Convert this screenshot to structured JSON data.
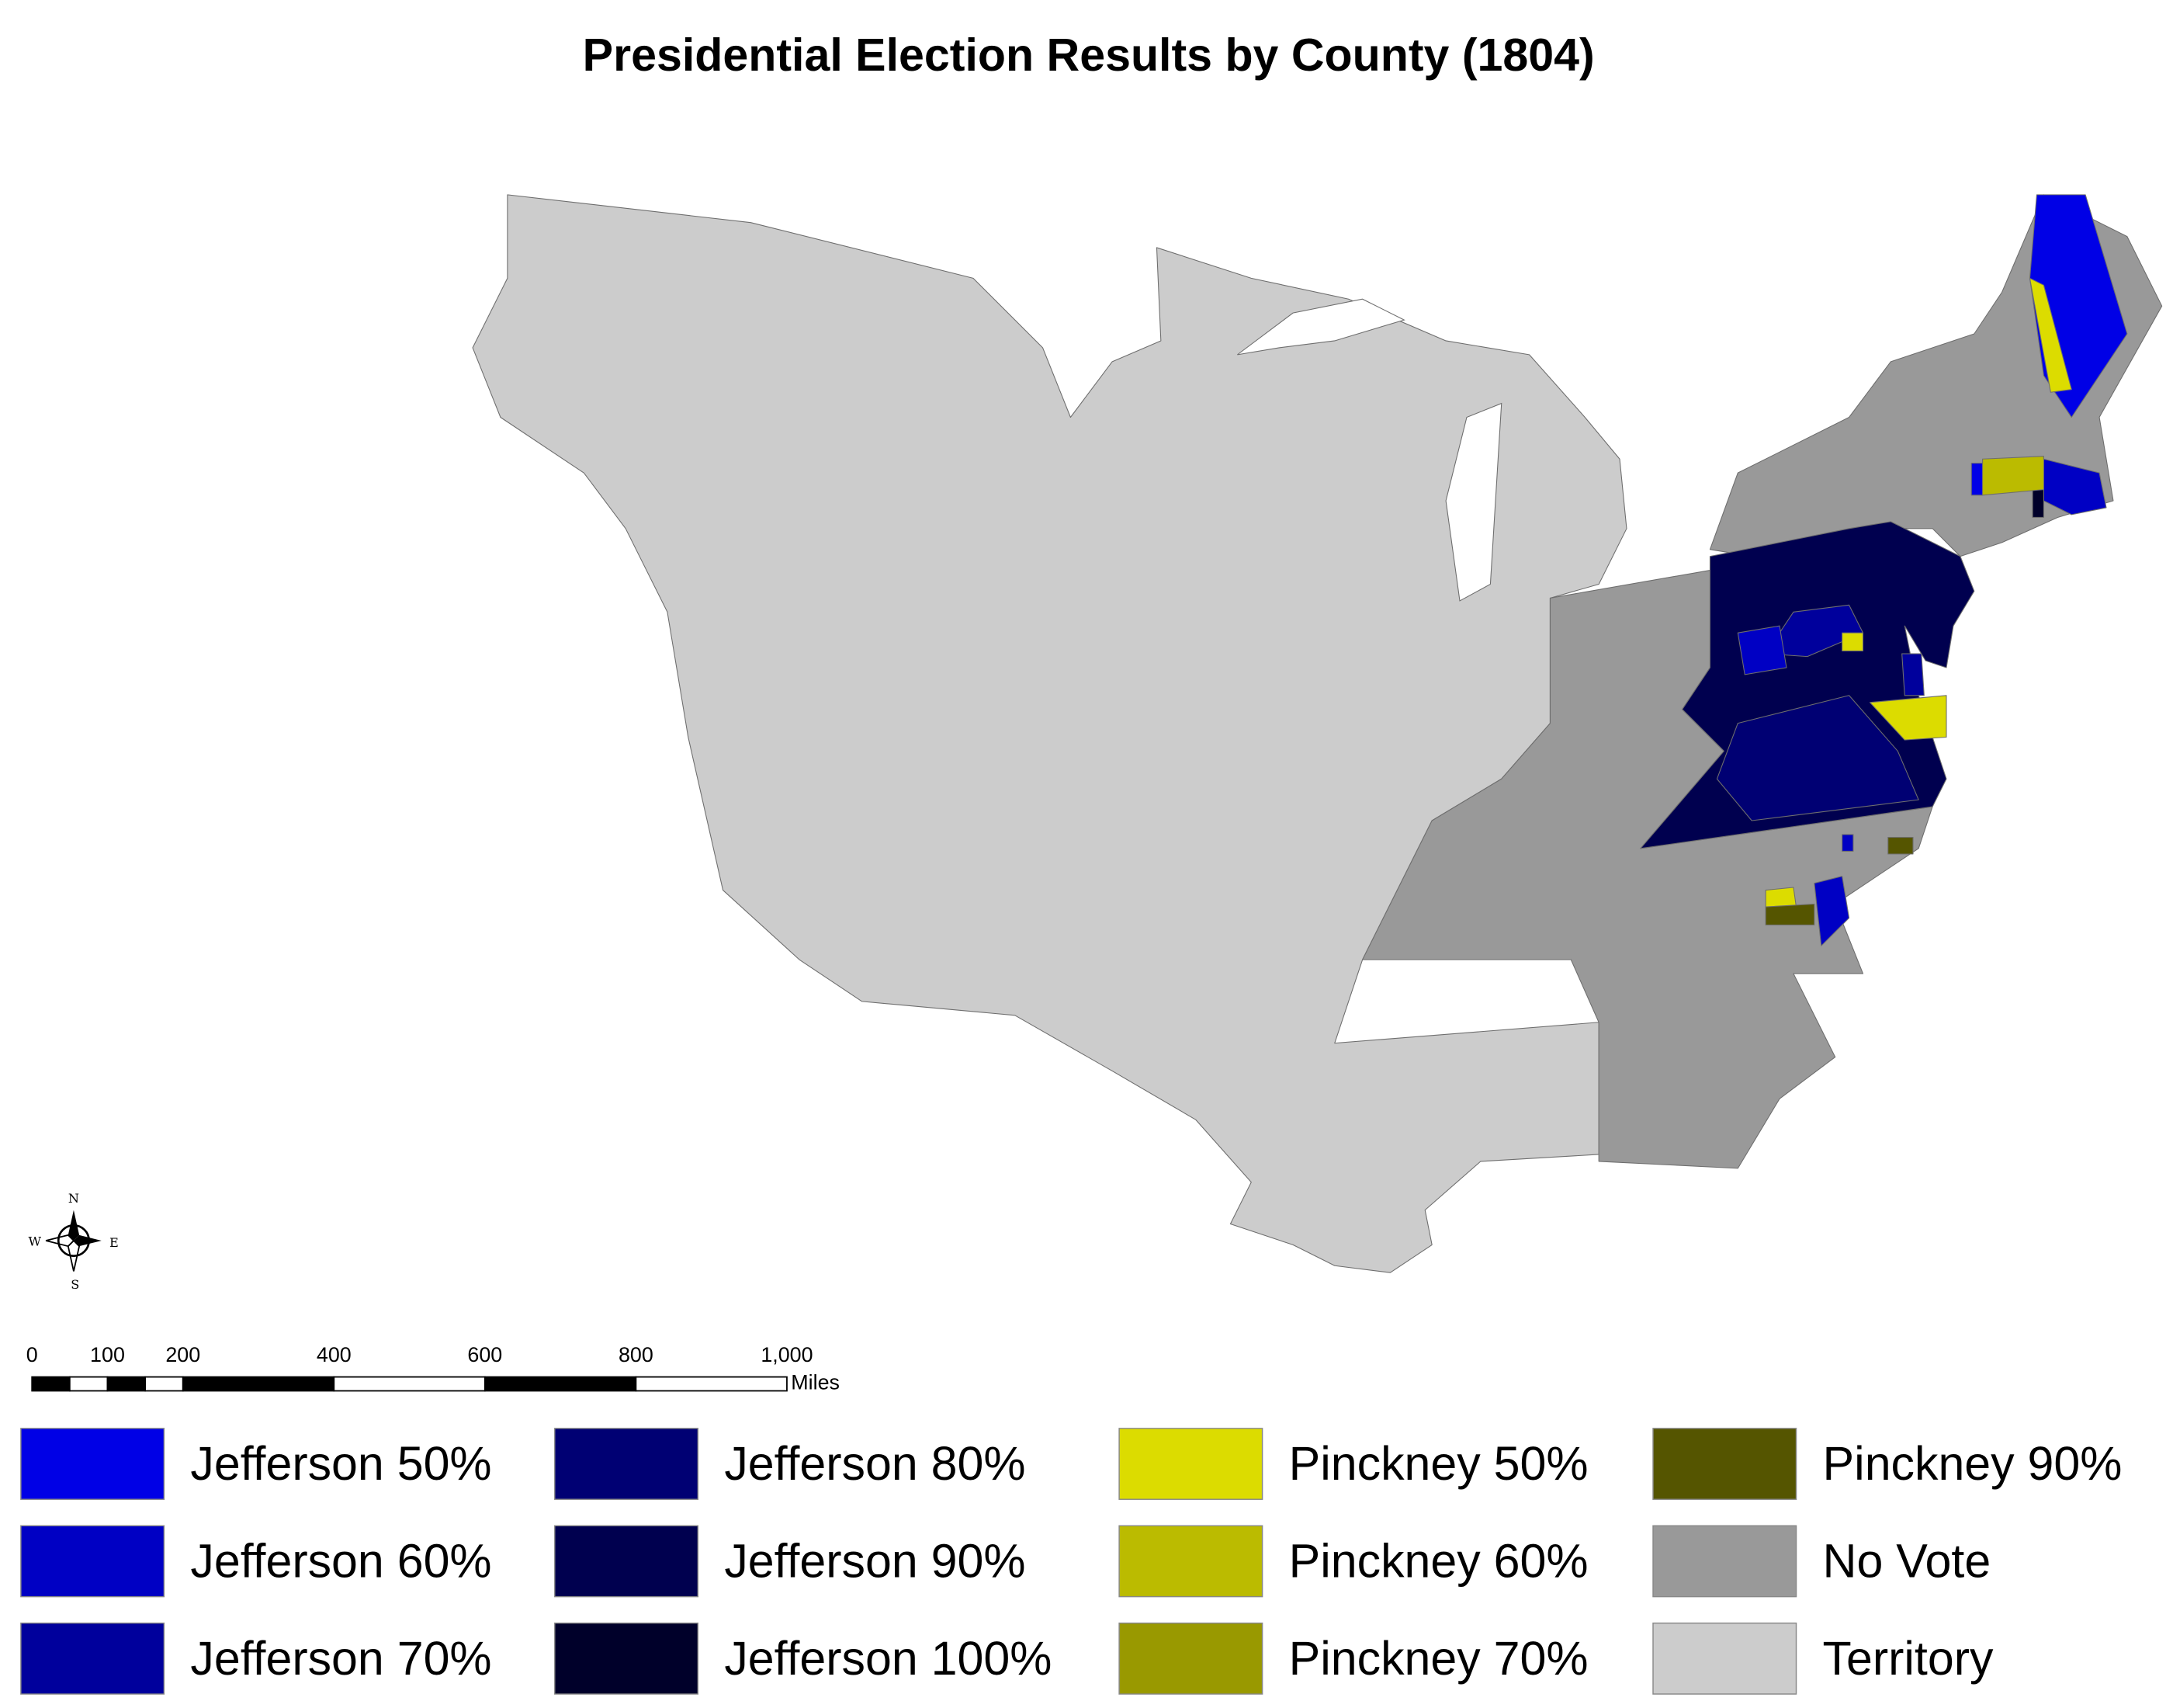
{
  "title": "Presidential Election Results by County (1804)",
  "compass": {
    "north": "N",
    "east": "E",
    "south": "S",
    "west": "W"
  },
  "scale_bar": {
    "unit": "Miles",
    "ticks": [
      0,
      100,
      200,
      400,
      600,
      800,
      {
        "value": 1000,
        "label": "1,000"
      }
    ]
  },
  "legend": [
    {
      "label": "Jefferson 50%",
      "color": "#0000e6"
    },
    {
      "label": "Jefferson 60%",
      "color": "#0000c4"
    },
    {
      "label": "Jefferson 70%",
      "color": "#00009c"
    },
    {
      "label": "Jefferson 80%",
      "color": "#000073"
    },
    {
      "label": "Jefferson 90%",
      "color": "#00004f"
    },
    {
      "label": "Jefferson 100%",
      "color": "#00002a"
    },
    {
      "label": "Pinckney 50%",
      "color": "#dcdc00"
    },
    {
      "label": "Pinckney 60%",
      "color": "#bbbb00"
    },
    {
      "label": "Pinckney 70%",
      "color": "#999900"
    },
    {
      "label": "Pinckney 90%",
      "color": "#555500"
    },
    {
      "label": "No Vote",
      "color": "#999999"
    },
    {
      "label": "Territory",
      "color": "#cccccc"
    }
  ]
}
